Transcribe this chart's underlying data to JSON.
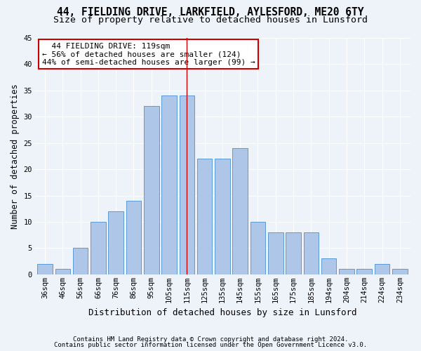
{
  "title1": "44, FIELDING DRIVE, LARKFIELD, AYLESFORD, ME20 6TY",
  "title2": "Size of property relative to detached houses in Lunsford",
  "xlabel": "Distribution of detached houses by size in Lunsford",
  "ylabel": "Number of detached properties",
  "footnote1": "Contains HM Land Registry data © Crown copyright and database right 2024.",
  "footnote2": "Contains public sector information licensed under the Open Government Licence v3.0.",
  "bar_labels": [
    "36sqm",
    "46sqm",
    "56sqm",
    "66sqm",
    "76sqm",
    "86sqm",
    "95sqm",
    "105sqm",
    "115sqm",
    "125sqm",
    "135sqm",
    "145sqm",
    "155sqm",
    "165sqm",
    "175sqm",
    "185sqm",
    "194sqm",
    "204sqm",
    "214sqm",
    "224sqm",
    "234sqm"
  ],
  "bar_values": [
    2,
    1,
    5,
    10,
    12,
    14,
    32,
    34,
    34,
    22,
    22,
    24,
    10,
    8,
    8,
    8,
    3,
    1,
    1,
    2,
    1
  ],
  "bar_color": "#aec6e8",
  "bar_edge_color": "#5b9bd5",
  "ylim": [
    0,
    45
  ],
  "yticks": [
    0,
    5,
    10,
    15,
    20,
    25,
    30,
    35,
    40,
    45
  ],
  "vline_x": 8.0,
  "vline_color": "#cc0000",
  "annotation_line1": "  44 FIELDING DRIVE: 119sqm",
  "annotation_line2": "← 56% of detached houses are smaller (124)",
  "annotation_line3": "44% of semi-detached houses are larger (99) →",
  "annotation_box_color": "#cc0000",
  "bg_color": "#eef2f9",
  "grid_color": "#ffffff",
  "title1_fontsize": 10.5,
  "title2_fontsize": 9.5,
  "annotation_fontsize": 8,
  "xlabel_fontsize": 9,
  "ylabel_fontsize": 8.5,
  "tick_fontsize": 7.5,
  "footnote_fontsize": 6.5
}
